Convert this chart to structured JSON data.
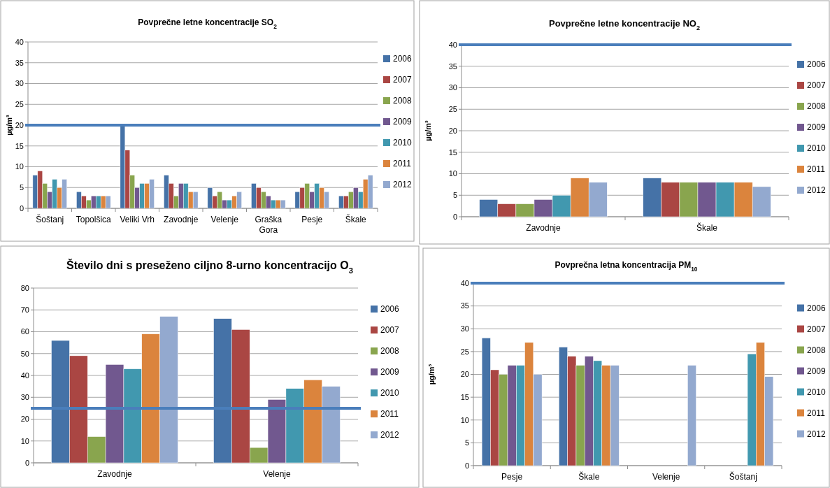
{
  "chart_data": [
    {
      "type": "bar",
      "title": "Povprečne letne koncentracije SO$_{2}$",
      "ylabel": "µg/m³",
      "categories": [
        "Šoštanj",
        "Topolšica",
        "Veliki Vrh",
        "Zavodnje",
        "Velenje",
        "Graška Gora",
        "Pesje",
        "Škale"
      ],
      "ylim": [
        0,
        40
      ],
      "yticks": [
        0,
        5,
        10,
        15,
        20,
        25,
        30,
        35,
        40
      ],
      "grid": "y",
      "legend": "right",
      "ref_lines": [
        {
          "axis": "y",
          "value": 20,
          "color": "#4a7ebb"
        }
      ],
      "series": [
        {
          "name": "2006",
          "color": "#4572a7",
          "values": [
            8,
            4,
            20,
            8,
            5,
            6,
            4,
            3
          ]
        },
        {
          "name": "2007",
          "color": "#aa4643",
          "values": [
            9,
            3,
            14,
            6,
            3,
            5,
            5,
            3
          ]
        },
        {
          "name": "2008",
          "color": "#89a54e",
          "values": [
            6,
            2,
            8,
            3,
            4,
            4,
            6,
            4
          ]
        },
        {
          "name": "2009",
          "color": "#71588f",
          "values": [
            4,
            3,
            5,
            6,
            2,
            3,
            4,
            5
          ]
        },
        {
          "name": "2010",
          "color": "#4198af",
          "values": [
            7,
            3,
            6,
            6,
            2,
            2,
            6,
            4
          ]
        },
        {
          "name": "2011",
          "color": "#db843d",
          "values": [
            5,
            3,
            6,
            4,
            3,
            2,
            5,
            7
          ]
        },
        {
          "name": "2012",
          "color": "#93a9cf",
          "values": [
            7,
            3,
            7,
            4,
            4,
            2,
            4,
            8
          ]
        }
      ]
    },
    {
      "type": "bar",
      "title": "Povprečne letne koncentracije NO$_{2}$",
      "ylabel": "µg/m³",
      "categories": [
        "Zavodnje",
        "Škale"
      ],
      "ylim": [
        0,
        40
      ],
      "yticks": [
        0,
        5,
        10,
        15,
        20,
        25,
        30,
        35,
        40
      ],
      "grid": "y",
      "legend": "right",
      "ref_lines": [
        {
          "axis": "y",
          "value": 40,
          "color": "#4a7ebb"
        }
      ],
      "series": [
        {
          "name": "2006",
          "color": "#4572a7",
          "values": [
            4,
            9
          ]
        },
        {
          "name": "2007",
          "color": "#aa4643",
          "values": [
            3,
            8
          ]
        },
        {
          "name": "2008",
          "color": "#89a54e",
          "values": [
            3,
            8
          ]
        },
        {
          "name": "2009",
          "color": "#71588f",
          "values": [
            4,
            8
          ]
        },
        {
          "name": "2010",
          "color": "#4198af",
          "values": [
            5,
            8
          ]
        },
        {
          "name": "2011",
          "color": "#db843d",
          "values": [
            9,
            8
          ]
        },
        {
          "name": "2012",
          "color": "#93a9cf",
          "values": [
            8,
            7
          ]
        }
      ]
    },
    {
      "type": "bar",
      "title": "Število dni s preseženo ciljno 8-urno koncentracijo O$_{3}$",
      "categories": [
        "Zavodnje",
        "Velenje"
      ],
      "ylim": [
        0,
        80
      ],
      "yticks": [
        0,
        10,
        20,
        30,
        40,
        50,
        60,
        70,
        80
      ],
      "grid": "y",
      "legend": "right",
      "ref_lines": [
        {
          "axis": "y",
          "value": 25,
          "color": "#4a7ebb"
        }
      ],
      "series": [
        {
          "name": "2006",
          "color": "#4572a7",
          "values": [
            56,
            66
          ]
        },
        {
          "name": "2007",
          "color": "#aa4643",
          "values": [
            49,
            61
          ]
        },
        {
          "name": "2008",
          "color": "#89a54e",
          "values": [
            12,
            7
          ]
        },
        {
          "name": "2009",
          "color": "#71588f",
          "values": [
            45,
            29
          ]
        },
        {
          "name": "2010",
          "color": "#4198af",
          "values": [
            43,
            34
          ]
        },
        {
          "name": "2011",
          "color": "#db843d",
          "values": [
            59,
            38
          ]
        },
        {
          "name": "2012",
          "color": "#93a9cf",
          "values": [
            67,
            35
          ]
        }
      ]
    },
    {
      "type": "bar",
      "title": "Povprečna letna koncentracija  PM$_{10}$",
      "ylabel": "µg/m³",
      "categories": [
        "Pesje",
        "Škale",
        "Velenje",
        "Šoštanj"
      ],
      "ylim": [
        0,
        40
      ],
      "yticks": [
        0,
        5,
        10,
        15,
        20,
        25,
        30,
        35,
        40
      ],
      "grid": "y",
      "legend": "right",
      "ref_lines": [
        {
          "axis": "y",
          "value": 40,
          "color": "#4a7ebb"
        }
      ],
      "series": [
        {
          "name": "2006",
          "color": "#4572a7",
          "values": [
            28,
            26,
            null,
            null
          ]
        },
        {
          "name": "2007",
          "color": "#aa4643",
          "values": [
            21,
            24,
            null,
            null
          ]
        },
        {
          "name": "2008",
          "color": "#89a54e",
          "values": [
            20,
            22,
            null,
            null
          ]
        },
        {
          "name": "2009",
          "color": "#71588f",
          "values": [
            22,
            24,
            null,
            null
          ]
        },
        {
          "name": "2010",
          "color": "#4198af",
          "values": [
            22,
            23,
            null,
            24.5
          ]
        },
        {
          "name": "2011",
          "color": "#db843d",
          "values": [
            27,
            22,
            null,
            27
          ]
        },
        {
          "name": "2012",
          "color": "#93a9cf",
          "values": [
            20,
            22,
            22,
            19.5
          ]
        }
      ]
    }
  ]
}
